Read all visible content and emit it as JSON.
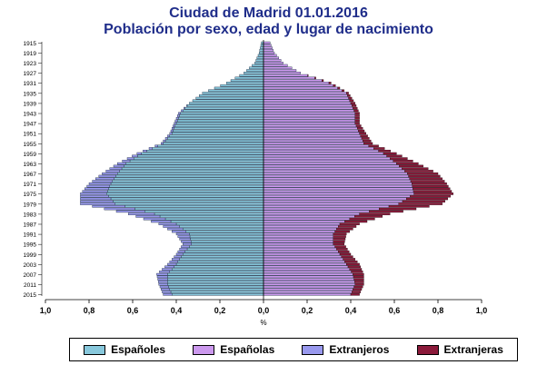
{
  "title": "Ciudad de Madrid 01.01.2016",
  "subtitle": "Población por sexo, edad y lugar de nacimiento",
  "colors": {
    "espanoles": "#88c8dc",
    "espanolas": "#cc99ee",
    "extranjeros": "#9999ee",
    "extranjeras": "#8b1a3a"
  },
  "chart_data": {
    "type": "bar",
    "orientation": "horizontal-pyramid",
    "xlabel": "%",
    "x_tick_labels": [
      "1,0",
      "0,8",
      "0,6",
      "0,4",
      "0,2",
      "0,0",
      "0,2",
      "0,4",
      "0,6",
      "0,8",
      "1,0"
    ],
    "xlim": [
      -1.0,
      1.0
    ],
    "grid": false,
    "legend_position": "bottom",
    "y_tick_labels": [
      "1915",
      "1919",
      "1923",
      "1927",
      "1931",
      "1935",
      "1939",
      "1943",
      "1947",
      "1951",
      "1955",
      "1959",
      "1963",
      "1967",
      "1971",
      "1975",
      "1979",
      "1983",
      "1987",
      "1991",
      "1995",
      "1999",
      "2003",
      "2007",
      "2011",
      "2015"
    ],
    "anchor_years": [
      1915,
      1919,
      1923,
      1927,
      1931,
      1935,
      1939,
      1943,
      1947,
      1951,
      1955,
      1959,
      1963,
      1967,
      1971,
      1975,
      1979,
      1983,
      1987,
      1991,
      1995,
      1999,
      2003,
      2007,
      2011,
      2015
    ],
    "series": [
      {
        "name": "Españoles",
        "side": "left",
        "values": [
          0.01,
          0.02,
          0.04,
          0.09,
          0.17,
          0.28,
          0.34,
          0.38,
          0.4,
          0.42,
          0.46,
          0.56,
          0.63,
          0.67,
          0.7,
          0.72,
          0.68,
          0.5,
          0.4,
          0.34,
          0.33,
          0.37,
          0.4,
          0.44,
          0.44,
          0.42
        ]
      },
      {
        "name": "Extranjeros",
        "side": "left",
        "values": [
          0.0,
          0.0,
          0.0,
          0.0,
          0.0,
          0.0,
          0.0,
          0.01,
          0.01,
          0.01,
          0.01,
          0.02,
          0.04,
          0.07,
          0.1,
          0.12,
          0.16,
          0.12,
          0.08,
          0.06,
          0.04,
          0.03,
          0.04,
          0.05,
          0.04,
          0.04
        ]
      },
      {
        "name": "Españolas",
        "side": "right",
        "values": [
          0.03,
          0.05,
          0.09,
          0.17,
          0.3,
          0.38,
          0.4,
          0.42,
          0.42,
          0.44,
          0.46,
          0.55,
          0.61,
          0.66,
          0.68,
          0.69,
          0.62,
          0.44,
          0.35,
          0.32,
          0.32,
          0.35,
          0.38,
          0.41,
          0.42,
          0.4
        ]
      },
      {
        "name": "Extranjeras",
        "side": "right",
        "values": [
          0.0,
          0.0,
          0.0,
          0.0,
          0.01,
          0.01,
          0.02,
          0.02,
          0.02,
          0.03,
          0.04,
          0.06,
          0.1,
          0.14,
          0.16,
          0.18,
          0.2,
          0.14,
          0.09,
          0.06,
          0.05,
          0.05,
          0.06,
          0.05,
          0.04,
          0.04
        ]
      }
    ]
  },
  "legend": [
    {
      "label": "Españoles",
      "color_key": "espanoles"
    },
    {
      "label": "Españolas",
      "color_key": "espanolas"
    },
    {
      "label": "Extranjeros",
      "color_key": "extranjeros"
    },
    {
      "label": "Extranjeras",
      "color_key": "extranjeras"
    }
  ]
}
